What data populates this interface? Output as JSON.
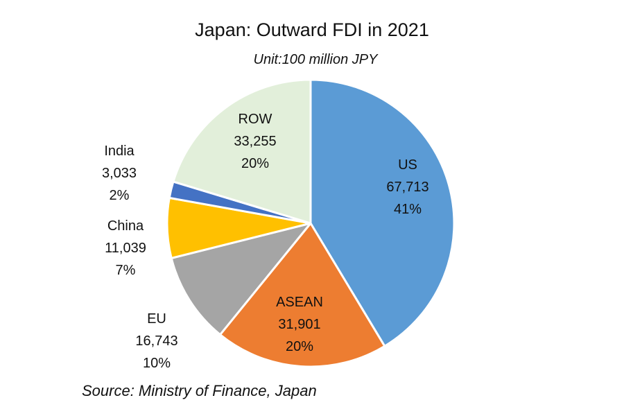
{
  "chart_data": {
    "type": "pie",
    "title": "Japan: Outward FDI in 2021",
    "subtitle": "Unit:100 million JPY",
    "source": "Source: Ministry of Finance, Japan",
    "slices": [
      {
        "label": "US",
        "value": 67713,
        "value_text": "67,713",
        "percent": "41%",
        "color": "#5b9bd5"
      },
      {
        "label": "ASEAN",
        "value": 31901,
        "value_text": "31,901",
        "percent": "20%",
        "color": "#ed7d31"
      },
      {
        "label": "EU",
        "value": 16743,
        "value_text": "16,743",
        "percent": "10%",
        "color": "#a5a5a5"
      },
      {
        "label": "China",
        "value": 11039,
        "value_text": "11,039",
        "percent": "7%",
        "color": "#ffc000"
      },
      {
        "label": "India",
        "value": 3033,
        "value_text": "3,033",
        "percent": "2%",
        "color": "#4472c4"
      },
      {
        "label": "ROW",
        "value": 33255,
        "value_text": "33,255",
        "percent": "20%",
        "color": "#e2efda"
      }
    ]
  }
}
